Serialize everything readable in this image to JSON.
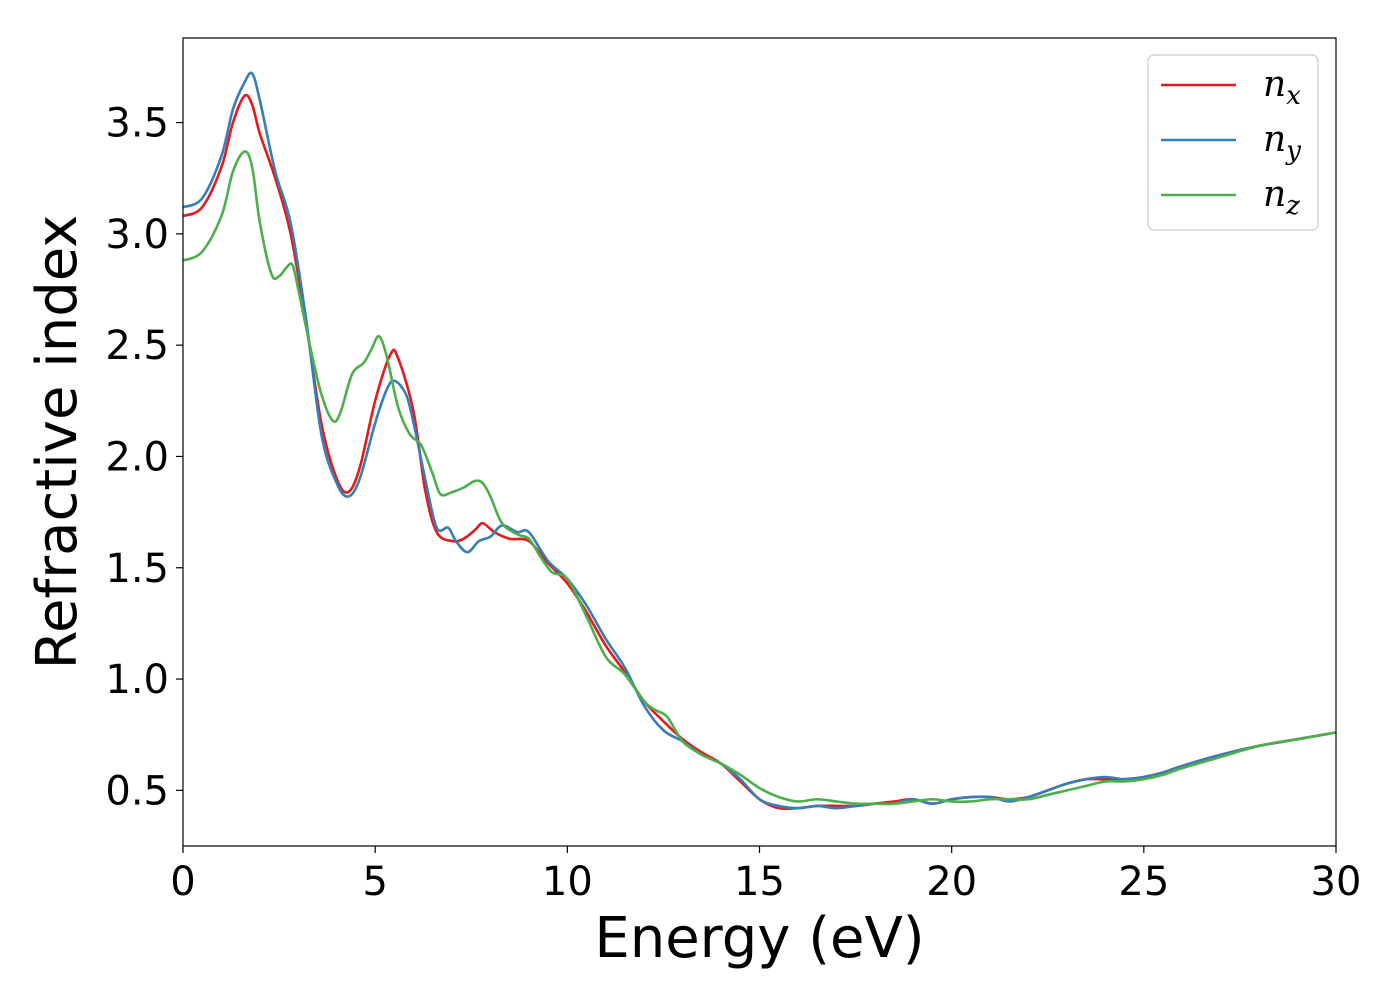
{
  "chart_data": {
    "type": "line",
    "title": "",
    "xlabel": "Energy (eV)",
    "ylabel": "Refractive index",
    "xlim": [
      0,
      30
    ],
    "ylim": [
      0.25,
      3.88
    ],
    "x_ticks": [
      "0",
      "5",
      "10",
      "15",
      "20",
      "25",
      "30"
    ],
    "y_ticks": [
      "0.5",
      "1.0",
      "1.5",
      "2.0",
      "2.5",
      "3.0",
      "3.5"
    ],
    "grid": false,
    "legend_position": "top-right",
    "series": [
      {
        "name": "n_x",
        "legend_base": "n",
        "legend_sub": "x",
        "color": "#e41a1c",
        "x": [
          0,
          0.5,
          1.0,
          1.3,
          1.6,
          1.8,
          2.0,
          2.4,
          2.8,
          3.2,
          3.6,
          4.0,
          4.3,
          4.6,
          5.0,
          5.4,
          5.6,
          6.0,
          6.3,
          6.6,
          7.0,
          7.3,
          7.6,
          7.8,
          8.1,
          8.5,
          9.0,
          9.5,
          10.0,
          10.5,
          11.0,
          11.5,
          12.0,
          12.5,
          13.0,
          13.5,
          14.0,
          14.5,
          15.0,
          15.5,
          16.0,
          16.5,
          17.0,
          17.5,
          18.0,
          18.5,
          19.0,
          19.5,
          20.0,
          20.5,
          21.0,
          21.5,
          22.0,
          22.5,
          23.0,
          23.5,
          24.0,
          24.5,
          25.0,
          25.5,
          26.0,
          27.0,
          28.0,
          29.0,
          30.0
        ],
        "y": [
          3.08,
          3.12,
          3.3,
          3.5,
          3.62,
          3.58,
          3.45,
          3.25,
          3.0,
          2.6,
          2.15,
          1.9,
          1.84,
          1.95,
          2.25,
          2.46,
          2.44,
          2.2,
          1.85,
          1.66,
          1.62,
          1.63,
          1.67,
          1.7,
          1.66,
          1.63,
          1.62,
          1.52,
          1.43,
          1.3,
          1.15,
          1.03,
          0.9,
          0.81,
          0.73,
          0.67,
          0.62,
          0.54,
          0.46,
          0.42,
          0.42,
          0.43,
          0.43,
          0.43,
          0.44,
          0.45,
          0.46,
          0.44,
          0.46,
          0.47,
          0.47,
          0.46,
          0.47,
          0.5,
          0.53,
          0.55,
          0.55,
          0.55,
          0.56,
          0.58,
          0.61,
          0.66,
          0.7,
          0.73,
          0.76
        ]
      },
      {
        "name": "n_y",
        "legend_base": "n",
        "legend_sub": "y",
        "color": "#377eb8",
        "x": [
          0,
          0.5,
          1.0,
          1.3,
          1.6,
          1.8,
          2.0,
          2.4,
          2.8,
          3.2,
          3.6,
          4.0,
          4.3,
          4.6,
          5.0,
          5.3,
          5.5,
          5.8,
          6.0,
          6.3,
          6.6,
          6.9,
          7.1,
          7.4,
          7.7,
          8.0,
          8.3,
          8.7,
          9.0,
          9.5,
          10.0,
          10.5,
          11.0,
          11.5,
          12.0,
          12.5,
          13.0,
          13.5,
          14.0,
          14.5,
          15.0,
          15.5,
          16.0,
          16.5,
          17.0,
          17.5,
          18.0,
          18.5,
          19.0,
          19.5,
          20.0,
          20.5,
          21.0,
          21.5,
          22.0,
          22.5,
          23.0,
          23.5,
          24.0,
          24.5,
          25.0,
          25.5,
          26.0,
          27.0,
          28.0,
          29.0,
          30.0
        ],
        "y": [
          3.12,
          3.16,
          3.35,
          3.56,
          3.68,
          3.72,
          3.6,
          3.28,
          3.05,
          2.62,
          2.1,
          1.88,
          1.82,
          1.9,
          2.15,
          2.3,
          2.34,
          2.28,
          2.15,
          1.9,
          1.68,
          1.68,
          1.62,
          1.57,
          1.62,
          1.64,
          1.69,
          1.66,
          1.66,
          1.53,
          1.45,
          1.33,
          1.18,
          1.05,
          0.88,
          0.77,
          0.72,
          0.66,
          0.62,
          0.55,
          0.46,
          0.43,
          0.42,
          0.43,
          0.42,
          0.43,
          0.44,
          0.44,
          0.46,
          0.44,
          0.46,
          0.47,
          0.47,
          0.45,
          0.47,
          0.5,
          0.53,
          0.55,
          0.56,
          0.55,
          0.56,
          0.58,
          0.61,
          0.66,
          0.7,
          0.73,
          0.76
        ]
      },
      {
        "name": "n_z",
        "legend_base": "n",
        "legend_sub": "z",
        "color": "#4daf4a",
        "x": [
          0,
          0.5,
          1.0,
          1.3,
          1.6,
          1.8,
          2.0,
          2.3,
          2.5,
          2.7,
          2.85,
          3.0,
          3.3,
          3.6,
          3.9,
          4.1,
          4.4,
          4.7,
          4.9,
          5.1,
          5.3,
          5.6,
          5.9,
          6.2,
          6.5,
          6.7,
          7.0,
          7.3,
          7.6,
          7.8,
          8.0,
          8.3,
          8.7,
          9.0,
          9.3,
          9.6,
          10.0,
          10.5,
          11.0,
          11.5,
          12.0,
          12.3,
          12.6,
          13.0,
          13.5,
          14.0,
          14.5,
          15.0,
          15.5,
          16.0,
          16.5,
          17.0,
          17.5,
          18.0,
          18.5,
          19.0,
          19.5,
          20.0,
          20.5,
          21.0,
          21.5,
          22.0,
          22.5,
          23.0,
          23.5,
          24.0,
          24.5,
          25.0,
          25.5,
          26.0,
          27.0,
          28.0,
          29.0,
          30.0
        ],
        "y": [
          2.88,
          2.92,
          3.08,
          3.28,
          3.37,
          3.3,
          3.05,
          2.82,
          2.81,
          2.85,
          2.86,
          2.75,
          2.5,
          2.28,
          2.16,
          2.2,
          2.37,
          2.42,
          2.48,
          2.54,
          2.45,
          2.22,
          2.1,
          2.05,
          1.92,
          1.83,
          1.84,
          1.86,
          1.89,
          1.88,
          1.82,
          1.7,
          1.65,
          1.63,
          1.55,
          1.48,
          1.45,
          1.28,
          1.1,
          1.02,
          0.9,
          0.86,
          0.83,
          0.72,
          0.66,
          0.62,
          0.57,
          0.51,
          0.47,
          0.45,
          0.46,
          0.45,
          0.44,
          0.44,
          0.44,
          0.45,
          0.46,
          0.45,
          0.45,
          0.46,
          0.46,
          0.46,
          0.48,
          0.5,
          0.52,
          0.54,
          0.54,
          0.55,
          0.57,
          0.6,
          0.65,
          0.7,
          0.73,
          0.76
        ]
      }
    ]
  }
}
